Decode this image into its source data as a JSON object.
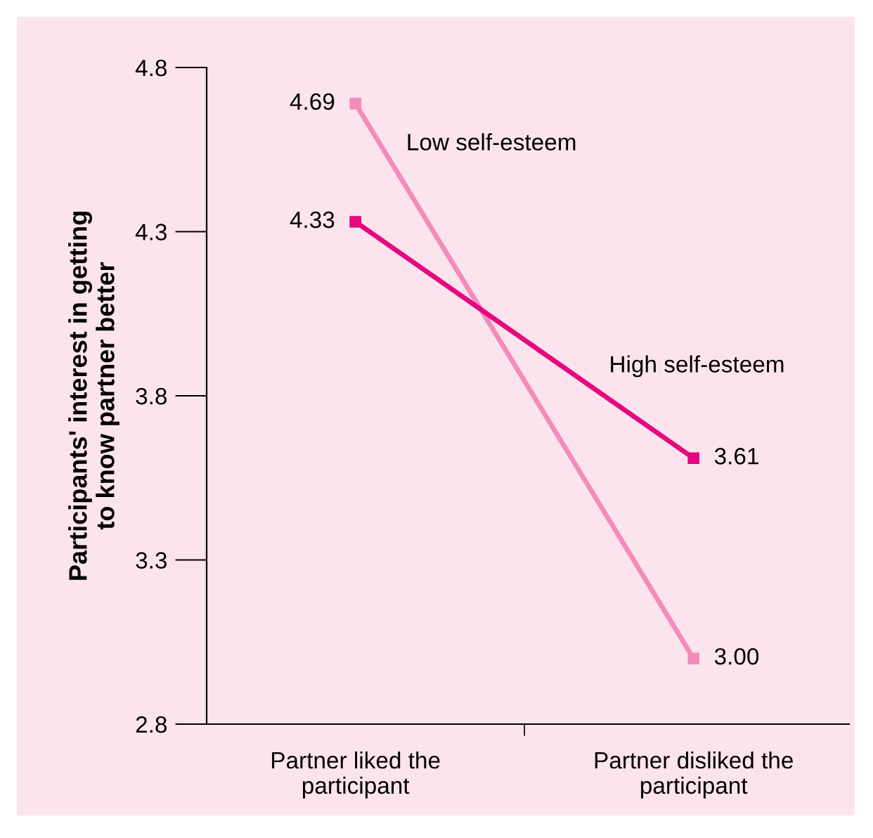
{
  "chart_data": {
    "type": "line",
    "ylabel": "Participants' interest in getting\nto know partner better",
    "categories": [
      "Partner liked the\nparticipant",
      "Partner disliked the\nparticipant"
    ],
    "series": [
      {
        "name": "Low self-esteem",
        "color": "#f48cb9",
        "values": [
          4.69,
          3.0
        ]
      },
      {
        "name": "High self-esteem",
        "color": "#e5087e",
        "values": [
          4.33,
          3.61
        ]
      }
    ],
    "ylim": [
      2.8,
      4.8
    ],
    "yticks": [
      {
        "value": 2.8,
        "label": "2.8"
      },
      {
        "value": 3.3,
        "label": "3.3"
      },
      {
        "value": 3.8,
        "label": "3.8"
      },
      {
        "value": 4.3,
        "label": "4.3"
      },
      {
        "value": 4.8,
        "label": "4.8"
      }
    ],
    "value_labels": [
      [
        "4.69",
        "3.00"
      ],
      [
        "4.33",
        "3.61"
      ]
    ],
    "marker": "square",
    "line_style": "solid",
    "grid": false,
    "legend": false
  }
}
